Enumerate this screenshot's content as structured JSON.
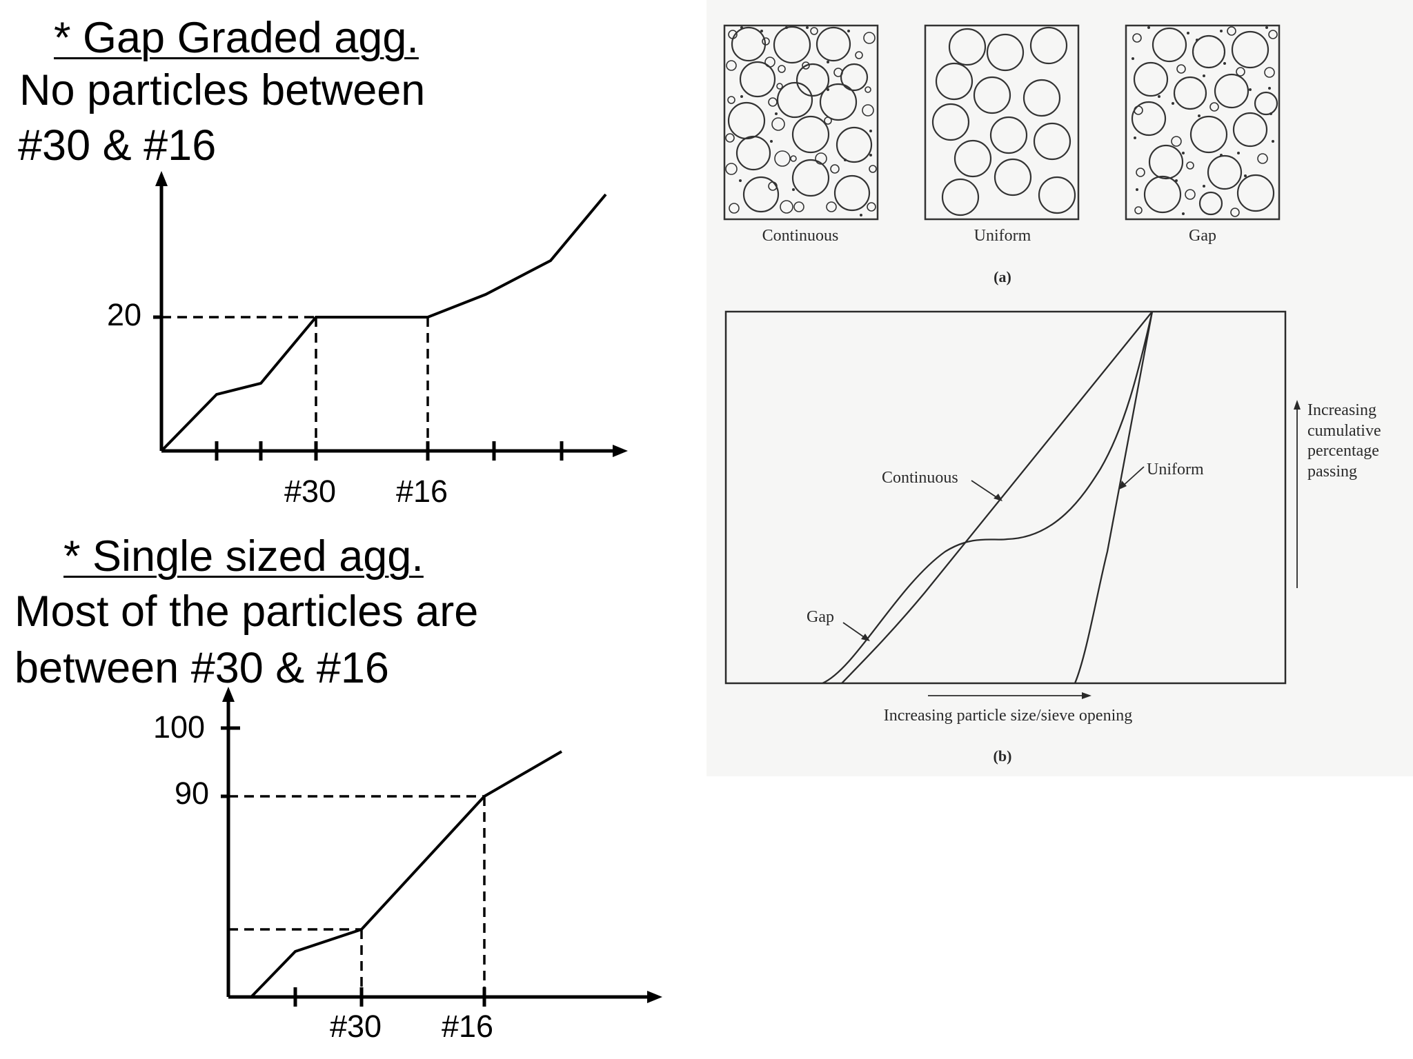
{
  "gap_section": {
    "heading": "* Gap Graded agg.",
    "line1": "No particles between",
    "line2": "#30 & #16",
    "y_tick": "20",
    "x_ticks": [
      "#30",
      "#16"
    ]
  },
  "single_section": {
    "heading": "* Single sized agg.",
    "line1": "Most of the particles are",
    "line2": "between #30 & #16",
    "y_ticks": [
      "100",
      "90"
    ],
    "x_ticks": [
      "#30",
      "#16"
    ]
  },
  "figure": {
    "panel_a": {
      "labels": [
        "Continuous",
        "Uniform",
        "Gap"
      ],
      "caption": "(a)"
    },
    "panel_b": {
      "curve_labels": [
        "Continuous",
        "Uniform",
        "Gap"
      ],
      "y_label_lines": [
        "Increasing",
        "cumulative",
        "percentage",
        "passing"
      ],
      "x_label": "Increasing particle size/sieve opening",
      "caption": "(b)"
    }
  }
}
